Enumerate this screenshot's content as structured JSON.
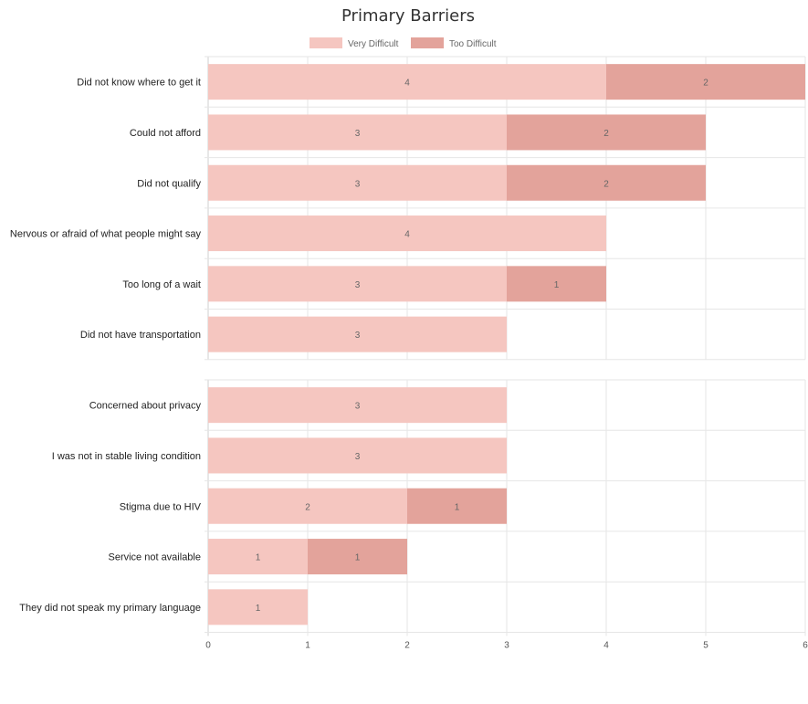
{
  "chart_data": {
    "type": "bar",
    "orientation": "horizontal",
    "stacked": true,
    "title": "Primary Barriers",
    "legend_position": "top",
    "grid": true,
    "xlim": [
      0,
      6
    ],
    "x_ticks": [
      "0",
      "1",
      "2",
      "3",
      "4",
      "5",
      "6"
    ],
    "series": [
      {
        "name": "Very Difficult",
        "color": "#f5c6c0"
      },
      {
        "name": "Too Difficult",
        "color": "#e3a39b"
      }
    ],
    "panels": [
      {
        "categories": [
          "Did not know where to get it",
          "Could not afford",
          "Did not qualify",
          "Nervous or afraid of what people might say",
          "Too long of a wait",
          "Did not have transportation"
        ],
        "very_difficult": [
          4,
          3,
          3,
          4,
          3,
          3
        ],
        "too_difficult": [
          2,
          2,
          2,
          0,
          1,
          0
        ]
      },
      {
        "categories": [
          "Concerned about privacy",
          "I was not in stable living condition",
          "Stigma due to HIV",
          "Service not available",
          "They did not speak my primary language"
        ],
        "very_difficult": [
          3,
          3,
          2,
          1,
          1
        ],
        "too_difficult": [
          0,
          0,
          1,
          1,
          0
        ]
      }
    ]
  }
}
